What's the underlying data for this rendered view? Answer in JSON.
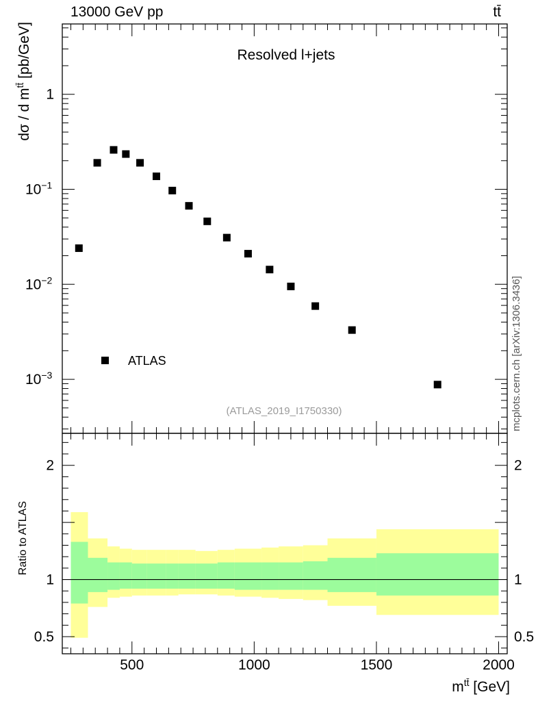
{
  "header": {
    "left": "13000 GeV pp",
    "right": "tt̄"
  },
  "side_credit": "mcplots.cern.ch [arXiv:1306.3436]",
  "colors": {
    "band_inner": "#9cfc9c",
    "band_outer": "#ffff99",
    "marker": "#000000"
  },
  "chart_data": [
    {
      "type": "scatter",
      "panel": "main",
      "title": "Resolved l+jets",
      "analysis_id": "(ATLAS_2019_I1750330)",
      "xlabel": "m",
      "xlabel_sup": "tt̄",
      "xlabel_unit": "[GeV]",
      "ylabel": "dσ / d m",
      "ylabel_sup": "tt̄",
      "ylabel_unit": "[pb/GeV]",
      "yscale": "log",
      "xlim": [
        215,
        2035
      ],
      "ylim": [
        0.00027,
        5.5
      ],
      "yticks": [
        {
          "label": "1",
          "value": 1
        },
        {
          "label": "10",
          "sup": "−1",
          "value": 0.1
        },
        {
          "label": "10",
          "sup": "−2",
          "value": 0.01
        },
        {
          "label": "10",
          "sup": "−3",
          "value": 0.001
        }
      ],
      "legend": {
        "label": "ATLAS",
        "placement": "bottom-left"
      },
      "series": [
        {
          "name": "ATLAS",
          "x": [
            283,
            358,
            425,
            475,
            533,
            600,
            665,
            733,
            808,
            888,
            975,
            1063,
            1150,
            1250,
            1400,
            1750
          ],
          "y": [
            0.024,
            0.19,
            0.26,
            0.235,
            0.19,
            0.137,
            0.097,
            0.067,
            0.046,
            0.031,
            0.021,
            0.0143,
            0.0095,
            0.0059,
            0.0033,
            0.00088
          ]
        }
      ]
    },
    {
      "type": "area",
      "panel": "ratio",
      "ylabel": "Ratio to ATLAS",
      "xlim": [
        215,
        2035
      ],
      "ylim": [
        0.35,
        2.28
      ],
      "xticks": [
        {
          "label": "500",
          "value": 500
        },
        {
          "label": "1000",
          "value": 1000
        },
        {
          "label": "1500",
          "value": 1500
        },
        {
          "label": "2000",
          "value": 2000
        }
      ],
      "yticks": [
        {
          "label": "2",
          "value": 2
        },
        {
          "label": "1",
          "value": 1
        },
        {
          "label": "0.5",
          "value": 0.5
        }
      ],
      "bins": [
        250,
        320,
        400,
        450,
        500,
        560,
        640,
        690,
        760,
        850,
        920,
        1030,
        1100,
        1200,
        1300,
        1500,
        2000
      ],
      "inner_band": {
        "lo": [
          0.79,
          0.89,
          0.91,
          0.92,
          0.92,
          0.92,
          0.92,
          0.92,
          0.92,
          0.92,
          0.91,
          0.91,
          0.91,
          0.91,
          0.89,
          0.86
        ],
        "hi": [
          1.33,
          1.19,
          1.15,
          1.15,
          1.14,
          1.14,
          1.14,
          1.14,
          1.14,
          1.15,
          1.15,
          1.15,
          1.15,
          1.16,
          1.19,
          1.23
        ]
      },
      "outer_band": {
        "lo": [
          0.49,
          0.76,
          0.84,
          0.85,
          0.86,
          0.86,
          0.86,
          0.87,
          0.87,
          0.86,
          0.85,
          0.84,
          0.83,
          0.82,
          0.77,
          0.69
        ],
        "hi": [
          1.59,
          1.36,
          1.29,
          1.27,
          1.26,
          1.26,
          1.26,
          1.26,
          1.25,
          1.26,
          1.27,
          1.28,
          1.29,
          1.3,
          1.36,
          1.44
        ]
      },
      "reference": 1
    }
  ]
}
